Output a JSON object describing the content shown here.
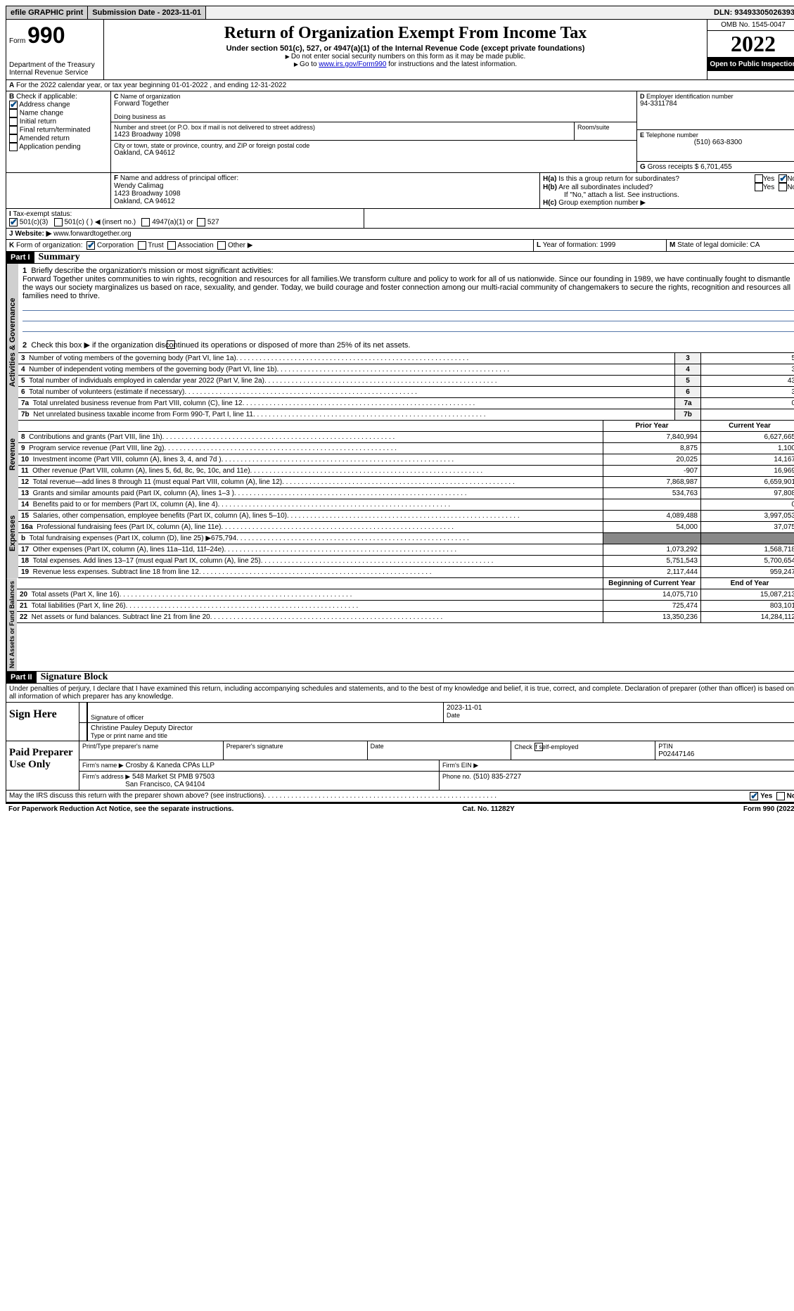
{
  "topbar": {
    "efile": "efile GRAPHIC print",
    "submission": "Submission Date - 2023-11-01",
    "dln": "DLN: 93493305026393"
  },
  "header": {
    "form_word": "Form",
    "form_num": "990",
    "dept": "Department of the Treasury",
    "irs": "Internal Revenue Service",
    "title": "Return of Organization Exempt From Income Tax",
    "subtitle": "Under section 501(c), 527, or 4947(a)(1) of the Internal Revenue Code (except private foundations)",
    "note1": "Do not enter social security numbers on this form as it may be made public.",
    "note2_pre": "Go to ",
    "note2_link": "www.irs.gov/Form990",
    "note2_post": " for instructions and the latest information.",
    "omb": "OMB No. 1545-0047",
    "year": "2022",
    "inspect": "Open to Public Inspection"
  },
  "lineA": "For the 2022 calendar year, or tax year beginning 01-01-2022     , and ending 12-31-2022",
  "boxB": {
    "label": "Check if applicable:",
    "addr_change": "Address change",
    "name_change": "Name change",
    "initial": "Initial return",
    "final": "Final return/terminated",
    "amended": "Amended return",
    "app_pending": "Application pending"
  },
  "boxC": {
    "label": "Name of organization",
    "name": "Forward Together",
    "dba_label": "Doing business as",
    "street_label": "Number and street (or P.O. box if mail is not delivered to street address)",
    "street": "1423 Broadway 1098",
    "room_label": "Room/suite",
    "city_label": "City or town, state or province, country, and ZIP or foreign postal code",
    "city": "Oakland, CA  94612"
  },
  "boxD": {
    "label": "Employer identification number",
    "val": "94-3311784"
  },
  "boxE": {
    "label": "Telephone number",
    "val": "(510) 663-8300"
  },
  "boxG": {
    "label": "Gross receipts $",
    "val": "6,701,455"
  },
  "boxF": {
    "label": "Name and address of principal officer:",
    "name": "Wendy Calimag",
    "addr1": "1423 Broadway 1098",
    "addr2": "Oakland, CA  94612"
  },
  "boxH": {
    "ha": "Is this a group return for subordinates?",
    "hb": "Are all subordinates included?",
    "hb_note": "If \"No,\" attach a list. See instructions.",
    "hc": "Group exemption number ▶",
    "yes": "Yes",
    "no": "No"
  },
  "boxI": {
    "label": "Tax-exempt status:",
    "c3": "501(c)(3)",
    "c": "501(c) (   ) ◀ (insert no.)",
    "a4947": "4947(a)(1) or",
    "s527": "527"
  },
  "boxJ": {
    "label": "Website: ▶",
    "val": "www.forwardtogether.org"
  },
  "boxK": {
    "label": "Form of organization:",
    "corp": "Corporation",
    "trust": "Trust",
    "assoc": "Association",
    "other": "Other ▶"
  },
  "boxL": {
    "label": "Year of formation:",
    "val": "1999"
  },
  "boxM": {
    "label": "State of legal domicile:",
    "val": "CA"
  },
  "part1": {
    "header": "Part I",
    "title": "Summary",
    "q1_label": "Briefly describe the organization's mission or most significant activities:",
    "q1_text": "Forward Together unites communities to win rights, recognition and resources for all families.We transform culture and policy to work for all of us nationwide. Since our founding in 1989, we have continually fought to dismantle the ways our society marginalizes us based on race, sexuality, and gender. Today, we build courage and foster connection among our multi-racial community of changemakers to secure the rights, recognition and resources all families need to thrive.",
    "q2": "Check this box ▶      if the organization discontinued its operations or disposed of more than 25% of its net assets.",
    "tabs": {
      "gov": "Activities & Governance",
      "rev": "Revenue",
      "exp": "Expenses",
      "net": "Net Assets or Fund Balances"
    },
    "gov_rows": [
      {
        "n": "3",
        "label": "Number of voting members of the governing body (Part VI, line 1a)",
        "val": "5"
      },
      {
        "n": "4",
        "label": "Number of independent voting members of the governing body (Part VI, line 1b)",
        "val": "3"
      },
      {
        "n": "5",
        "label": "Total number of individuals employed in calendar year 2022 (Part V, line 2a)",
        "val": "43"
      },
      {
        "n": "6",
        "label": "Total number of volunteers (estimate if necessary)",
        "val": "3"
      },
      {
        "n": "7a",
        "label": "Total unrelated business revenue from Part VIII, column (C), line 12",
        "val": "0"
      },
      {
        "n": "7b",
        "label": "Net unrelated business taxable income from Form 990-T, Part I, line 11",
        "val": ""
      }
    ],
    "col_headers": {
      "prior": "Prior Year",
      "current": "Current Year",
      "beg": "Beginning of Current Year",
      "end": "End of Year"
    },
    "rev_rows": [
      {
        "n": "8",
        "label": "Contributions and grants (Part VIII, line 1h)",
        "p": "7,840,994",
        "c": "6,627,665"
      },
      {
        "n": "9",
        "label": "Program service revenue (Part VIII, line 2g)",
        "p": "8,875",
        "c": "1,100"
      },
      {
        "n": "10",
        "label": "Investment income (Part VIII, column (A), lines 3, 4, and 7d )",
        "p": "20,025",
        "c": "14,167"
      },
      {
        "n": "11",
        "label": "Other revenue (Part VIII, column (A), lines 5, 6d, 8c, 9c, 10c, and 11e)",
        "p": "-907",
        "c": "16,969"
      },
      {
        "n": "12",
        "label": "Total revenue—add lines 8 through 11 (must equal Part VIII, column (A), line 12)",
        "p": "7,868,987",
        "c": "6,659,901"
      }
    ],
    "exp_rows": [
      {
        "n": "13",
        "label": "Grants and similar amounts paid (Part IX, column (A), lines 1–3 )",
        "p": "534,763",
        "c": "97,808"
      },
      {
        "n": "14",
        "label": "Benefits paid to or for members (Part IX, column (A), line 4)",
        "p": "",
        "c": "0"
      },
      {
        "n": "15",
        "label": "Salaries, other compensation, employee benefits (Part IX, column (A), lines 5–10)",
        "p": "4,089,488",
        "c": "3,997,053"
      },
      {
        "n": "16a",
        "label": "Professional fundraising fees (Part IX, column (A), line 11e)",
        "p": "54,000",
        "c": "37,075"
      },
      {
        "n": "b",
        "label": "Total fundraising expenses (Part IX, column (D), line 25) ▶675,794",
        "p": "SHADE",
        "c": "SHADE"
      },
      {
        "n": "17",
        "label": "Other expenses (Part IX, column (A), lines 11a–11d, 11f–24e)",
        "p": "1,073,292",
        "c": "1,568,718"
      },
      {
        "n": "18",
        "label": "Total expenses. Add lines 13–17 (must equal Part IX, column (A), line 25)",
        "p": "5,751,543",
        "c": "5,700,654"
      },
      {
        "n": "19",
        "label": "Revenue less expenses. Subtract line 18 from line 12",
        "p": "2,117,444",
        "c": "959,247"
      }
    ],
    "net_rows": [
      {
        "n": "20",
        "label": "Total assets (Part X, line 16)",
        "p": "14,075,710",
        "c": "15,087,213"
      },
      {
        "n": "21",
        "label": "Total liabilities (Part X, line 26)",
        "p": "725,474",
        "c": "803,101"
      },
      {
        "n": "22",
        "label": "Net assets or fund balances. Subtract line 21 from line 20",
        "p": "13,350,236",
        "c": "14,284,112"
      }
    ]
  },
  "part2": {
    "header": "Part II",
    "title": "Signature Block",
    "decl": "Under penalties of perjury, I declare that I have examined this return, including accompanying schedules and statements, and to the best of my knowledge and belief, it is true, correct, and complete. Declaration of preparer (other than officer) is based on all information of which preparer has any knowledge.",
    "sign_here": "Sign Here",
    "sig_officer": "Signature of officer",
    "date": "Date",
    "date_val": "2023-11-01",
    "name_title": "Christine Pauley  Deputy Director",
    "type_name": "Type or print name and title",
    "paid": "Paid Preparer Use Only",
    "prep_name_label": "Print/Type preparer's name",
    "prep_sig_label": "Preparer's signature",
    "check_self": "Check         if self-employed",
    "ptin_label": "PTIN",
    "ptin": "P02447146",
    "firm_name_label": "Firm's name    ▶",
    "firm_name": "Crosby & Kaneda CPAs LLP",
    "firm_ein_label": "Firm's EIN ▶",
    "firm_addr_label": "Firm's address ▶",
    "firm_addr1": "548 Market St PMB 97503",
    "firm_addr2": "San Francisco, CA  94104",
    "phone_label": "Phone no.",
    "phone": "(510) 835-2727",
    "may_irs": "May the IRS discuss this return with the preparer shown above? (see instructions)"
  },
  "footer": {
    "left": "For Paperwork Reduction Act Notice, see the separate instructions.",
    "mid": "Cat. No. 11282Y",
    "right_form": "Form",
    "right_num": "990",
    "right_year": "(2022)"
  }
}
